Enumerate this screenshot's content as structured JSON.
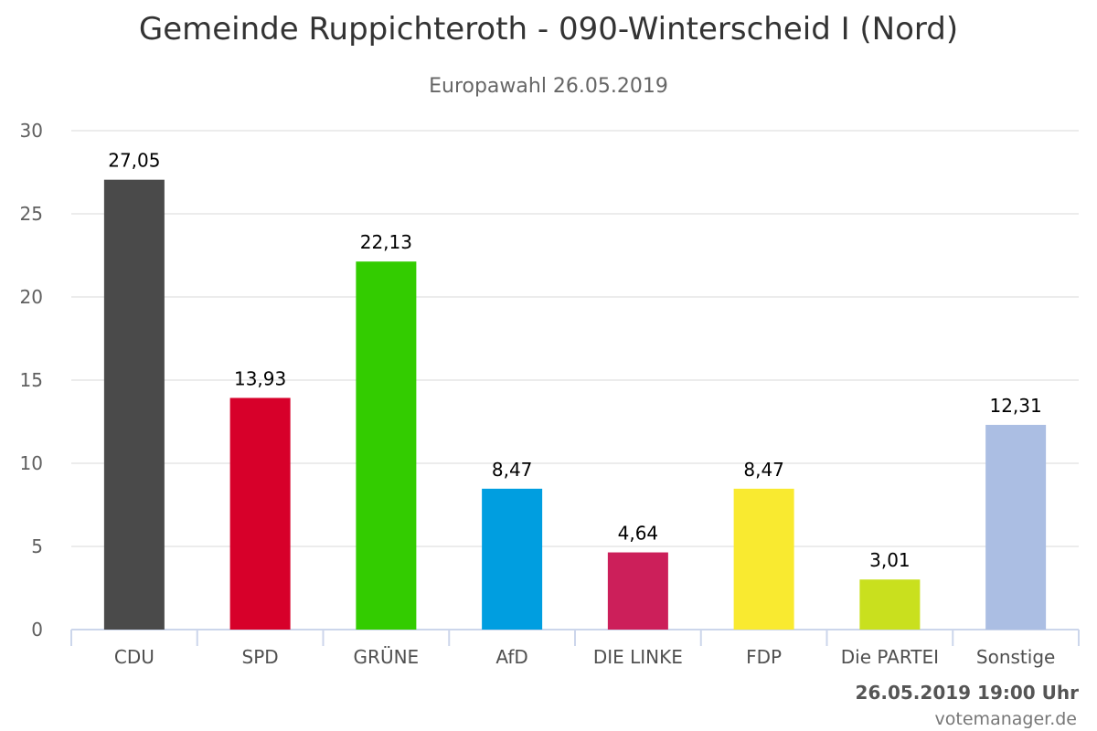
{
  "chart_data": {
    "type": "bar",
    "title": "Gemeinde Ruppichteroth - 090-Winterscheid I (Nord)",
    "subtitle": "Europawahl 26.05.2019",
    "categories": [
      "CDU",
      "SPD",
      "GRÜNE",
      "AfD",
      "DIE LINKE",
      "FDP",
      "Die PARTEI",
      "Sonstige"
    ],
    "values": [
      27.05,
      13.93,
      22.13,
      8.47,
      4.64,
      8.47,
      3.01,
      12.31
    ],
    "value_labels": [
      "27,05",
      "13,93",
      "22,13",
      "8,47",
      "4,64",
      "8,47",
      "3,01",
      "12,31"
    ],
    "colors": [
      "#4a4a4a",
      "#d7002a",
      "#33cc00",
      "#009ee0",
      "#cc1f5a",
      "#f9ea30",
      "#c9e01e",
      "#abbee3"
    ],
    "ylim": [
      0,
      30
    ],
    "yticks": [
      0,
      5,
      10,
      15,
      20,
      25,
      30
    ],
    "grid": true,
    "legend": "none"
  },
  "footer": {
    "date": "26.05.2019 19:00 Uhr",
    "credit": "votemanager.de"
  }
}
